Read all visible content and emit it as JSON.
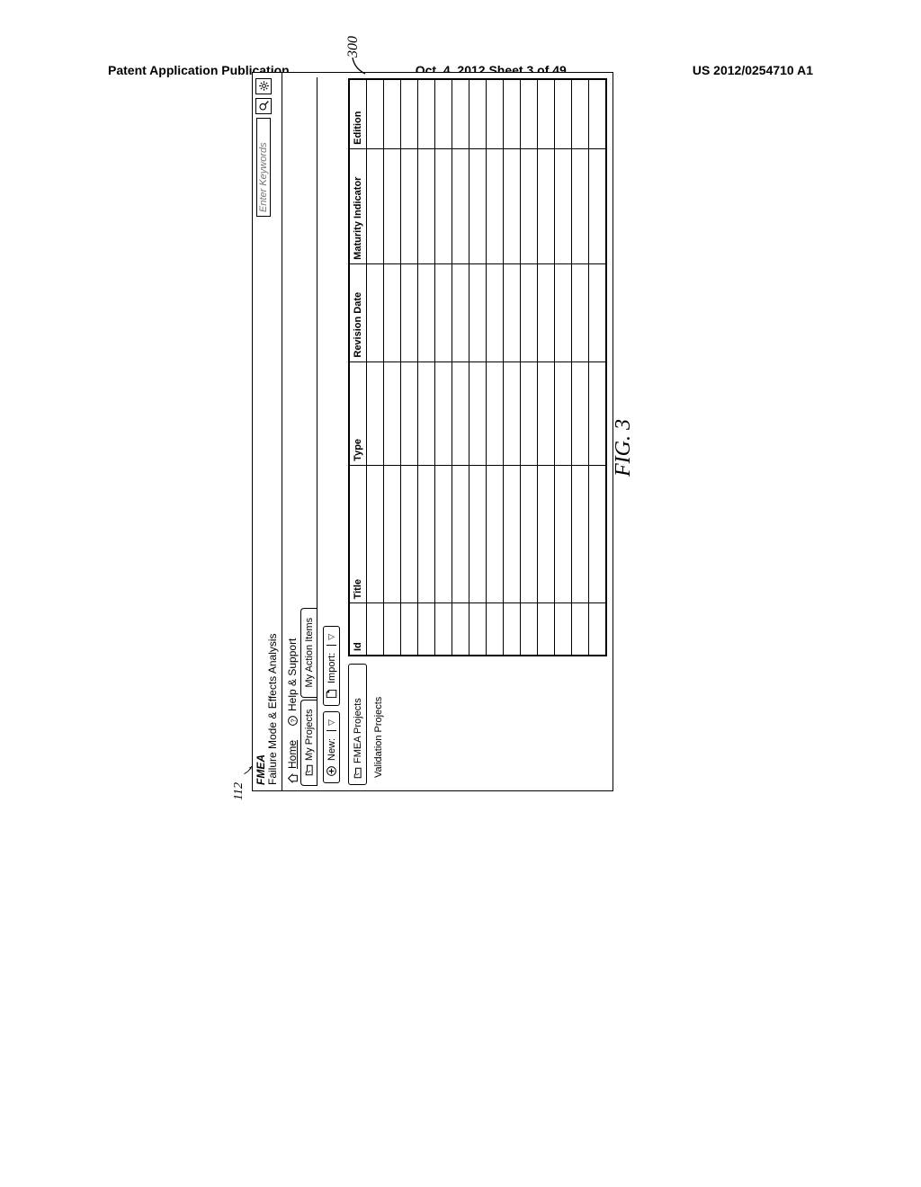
{
  "page_header": {
    "left": "Patent Application Publication",
    "center": "Oct. 4, 2012  Sheet 3 of 49",
    "right": "US 2012/0254710 A1"
  },
  "refs": {
    "ref112": "112",
    "ref300": "300"
  },
  "title": {
    "acronym": "FMEA",
    "long": "Failure Mode & Effects Analysis"
  },
  "search": {
    "placeholder": "Enter Keywords"
  },
  "nav": {
    "home": "Home",
    "help": "Help & Support"
  },
  "tabs": {
    "my_projects": "My Projects",
    "my_action_items": "My Action Items"
  },
  "toolbar": {
    "new_label": "New:",
    "import_label": "Import:"
  },
  "sidebar": {
    "fmea_projects": "FMEA Projects",
    "validation_projects": "Validation Projects"
  },
  "table": {
    "columns": [
      "Id",
      "Title",
      "Type",
      "Revision Date",
      "Maturity Indicator",
      "Edition"
    ],
    "row_count": 14
  },
  "figure_caption": "FIG. 3"
}
